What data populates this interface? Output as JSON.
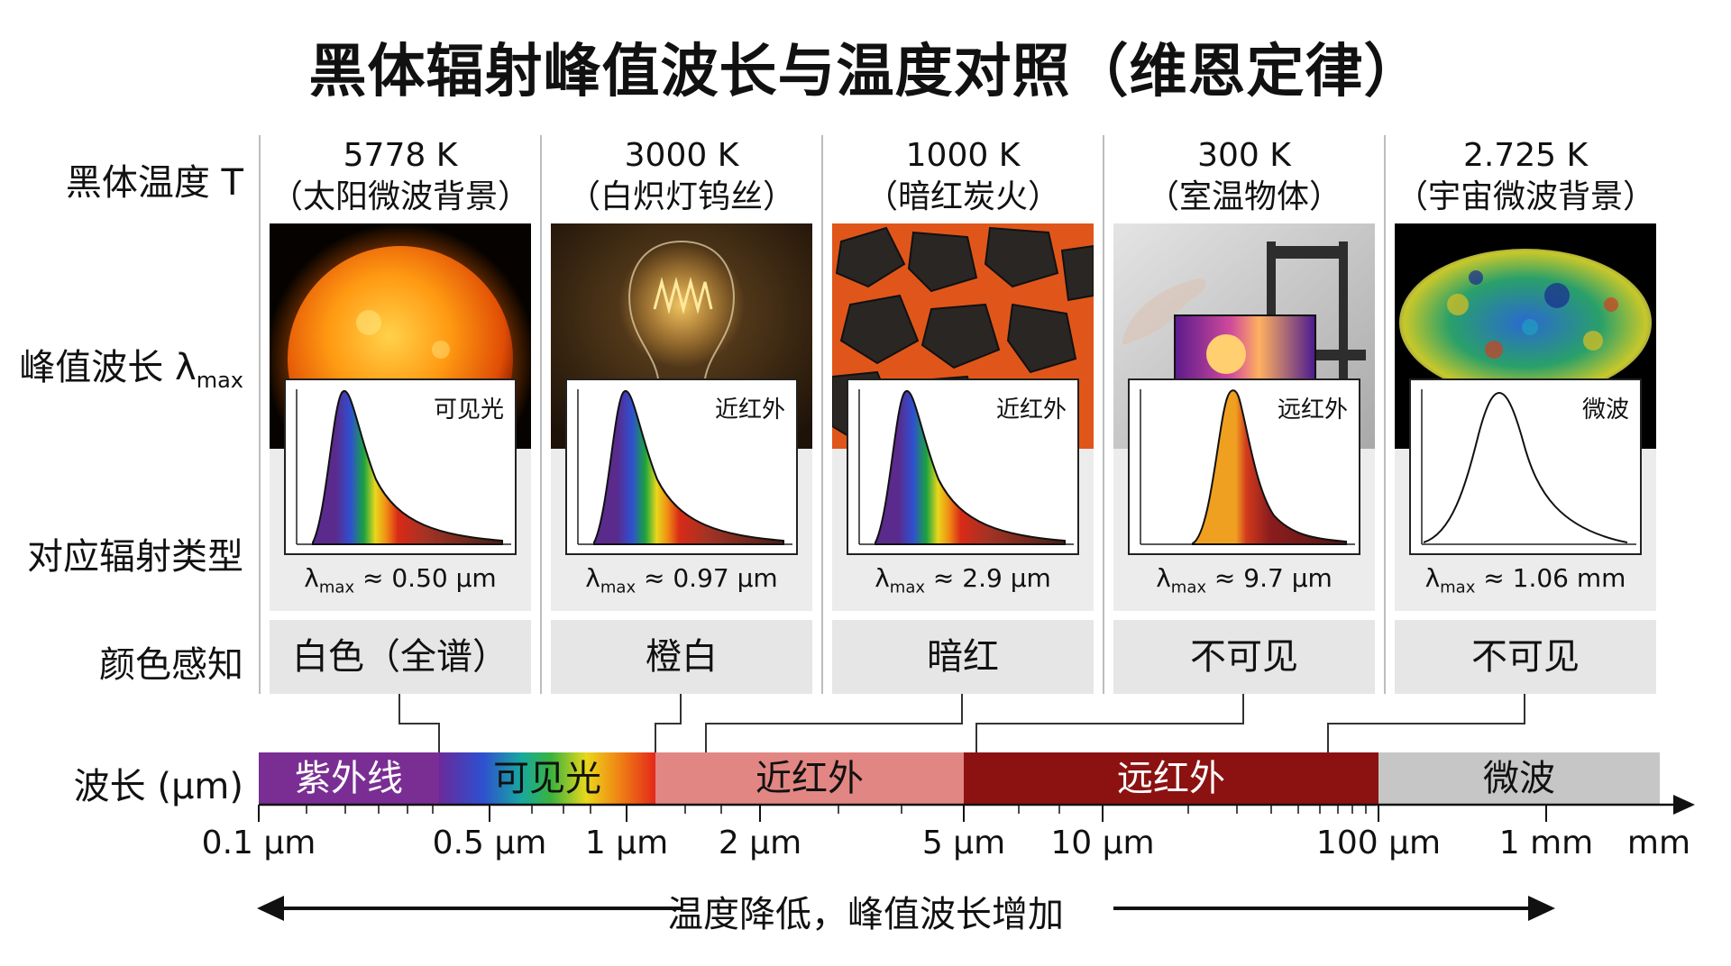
{
  "title": "黑体辐射峰值波长与温度对照（维恩定律）",
  "row_labels": {
    "temperature": "黑体温度 T",
    "peak_main": "峰值波长 λ",
    "peak_sub": "max",
    "radiation_type": "对应辐射类型",
    "color": "颜色感知",
    "wavelength": "波长 (μm)"
  },
  "columns": [
    {
      "temp": "5778 K",
      "desc": "（太阳微波背景）",
      "radiation": "可见光",
      "lam_value": "≈ 0.50 μm",
      "color": "白色（全谱）"
    },
    {
      "temp": "3000 K",
      "desc": "（白炽灯钨丝）",
      "radiation": "近红外",
      "lam_value": "≈ 0.97 μm",
      "color": "橙白"
    },
    {
      "temp": "1000 K",
      "desc": "（暗红炭火）",
      "radiation": "近红外",
      "lam_value": "≈ 2.9 μm",
      "color": "暗红"
    },
    {
      "temp": "300 K",
      "desc": "（室温物体）",
      "radiation": "远红外",
      "lam_value": "≈ 9.7 μm",
      "color": "不可见"
    },
    {
      "temp": "2.725 K",
      "desc": "（宇宙微波背景）",
      "radiation": "微波",
      "lam_value": "≈ 1.06 mm",
      "color": "不可见"
    }
  ],
  "lambda_symbol": "λ",
  "lambda_sub": "max",
  "bands": [
    {
      "label": "紫外线",
      "color": "#7a2e93"
    },
    {
      "label": "可见光",
      "color": "spectrum"
    },
    {
      "label": "近红外",
      "color": "#e28683"
    },
    {
      "label": "远红外",
      "color": "#8c1212"
    },
    {
      "label": "微波",
      "color": "#c6c6c6"
    }
  ],
  "ticks": [
    "0.1 μm",
    "0.5 μm",
    "1 μm",
    "2 μm",
    "5 μm",
    "10 μm",
    "100 μm",
    "1 mm",
    "mm"
  ],
  "caption": "温度降低，峰值波长增加"
}
